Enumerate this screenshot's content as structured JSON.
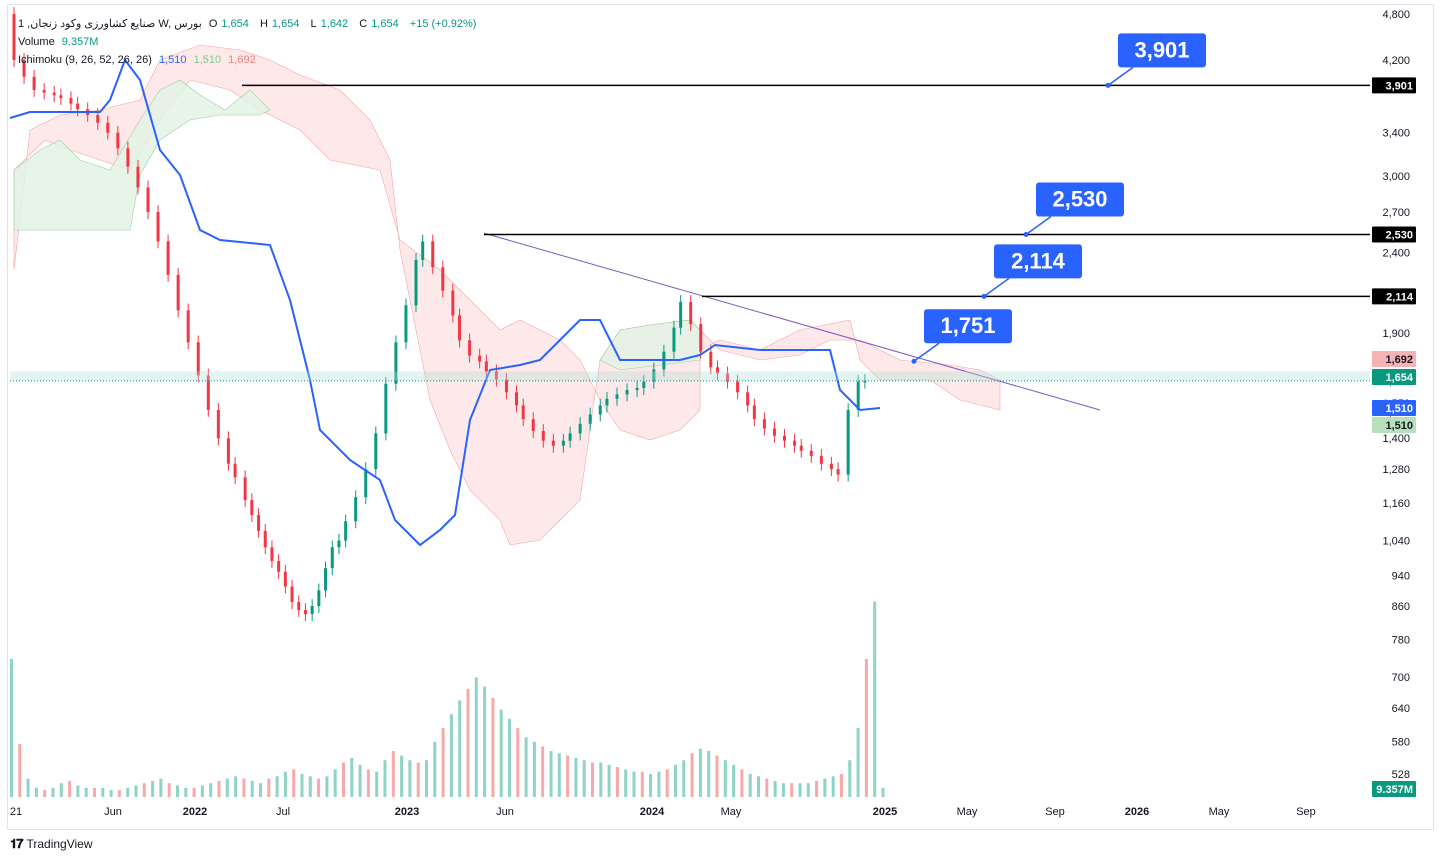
{
  "header": {
    "symbol_line": "1 ,صنایع کشاورزی وکود زنجان W, بورس",
    "ohlc": {
      "o_label": "O",
      "o": "1,654",
      "h_label": "H",
      "h": "1,654",
      "l_label": "L",
      "l": "1,642",
      "c_label": "C",
      "c": "1,654",
      "change": "+15 (+0.92%)"
    },
    "volume_label": "Volume",
    "volume_value": "9.357M",
    "ichimoku_label": "Ichimoku (9, 26, 52, 26, 26)",
    "ichimoku_values": [
      "1,510",
      "1,510",
      "1,692"
    ]
  },
  "footer": {
    "brand": "TradingView"
  },
  "colors": {
    "up": "#089981",
    "down": "#f23645",
    "kijun": "#2962ff",
    "cloud_red": "#fce0df",
    "cloud_green": "#e1f3e4",
    "level_line": "#000000",
    "callout": "#2962ff",
    "trendline": "#7e57c2"
  },
  "chart_data": {
    "type": "candlestick",
    "y_axis": {
      "scale": "log",
      "ticks": [
        4800,
        4200,
        3900,
        3400,
        3000,
        2700,
        2400,
        2114,
        1900,
        1692,
        1654,
        1550,
        1510,
        1400,
        1280,
        1160,
        1040,
        940,
        860,
        780,
        700,
        640,
        580,
        528
      ]
    },
    "x_axis": {
      "ticks": [
        "21",
        "Jun",
        "2022",
        "Jul",
        "2023",
        "Jun",
        "2024",
        "May",
        "2025",
        "May",
        "Sep",
        "2026",
        "May",
        "Sep"
      ]
    },
    "price_labels": [
      {
        "text": "3,901",
        "style": "black"
      },
      {
        "text": "2,530",
        "style": "black"
      },
      {
        "text": "2,114",
        "style": "black"
      },
      {
        "text": "1,692",
        "style": "pink"
      },
      {
        "text": "1,654",
        "style": "green"
      },
      {
        "text": "1,510",
        "style": "blue"
      },
      {
        "text": "1,510",
        "style": "lightgreen"
      },
      {
        "text": "9.357M",
        "style": "green"
      }
    ],
    "levels": [
      {
        "label": "3,901",
        "value": 3901
      },
      {
        "label": "2,530",
        "value": 2530
      },
      {
        "label": "2,114",
        "value": 2114
      },
      {
        "label": "1,751",
        "value": 1751
      }
    ],
    "last_close": 1654,
    "candles_approx": [
      [
        0,
        4200,
        4800
      ],
      [
        3,
        4000,
        4200
      ],
      [
        6,
        3850,
        4000
      ],
      [
        9,
        3820,
        3850
      ],
      [
        12,
        3790,
        3820
      ],
      [
        14,
        3760,
        3790
      ],
      [
        17,
        3700,
        3760
      ],
      [
        19,
        3640,
        3700
      ],
      [
        22,
        3580,
        3640
      ],
      [
        25,
        3500,
        3580
      ],
      [
        28,
        3400,
        3500
      ],
      [
        31,
        3250,
        3400
      ],
      [
        34,
        3080,
        3250
      ],
      [
        37,
        2900,
        3080
      ],
      [
        40,
        2700,
        2900
      ],
      [
        43,
        2480,
        2700
      ],
      [
        46,
        2250,
        2480
      ],
      [
        49,
        2030,
        2250
      ],
      [
        52,
        1850,
        2030
      ],
      [
        55,
        1680,
        1850
      ],
      [
        58,
        1520,
        1680
      ],
      [
        61,
        1400,
        1520
      ],
      [
        64,
        1300,
        1400
      ],
      [
        66,
        1250,
        1300
      ],
      [
        69,
        1170,
        1250
      ],
      [
        71,
        1120,
        1170
      ],
      [
        73,
        1070,
        1120
      ],
      [
        75,
        1020,
        1070
      ],
      [
        77,
        980,
        1020
      ],
      [
        79,
        950,
        980
      ],
      [
        81,
        910,
        950
      ],
      [
        83,
        870,
        910
      ],
      [
        85,
        850,
        870
      ],
      [
        87,
        840,
        850
      ],
      [
        89,
        860,
        840
      ],
      [
        91,
        900,
        860
      ],
      [
        93,
        960,
        900
      ],
      [
        95,
        1020,
        960
      ],
      [
        97,
        1040,
        1020
      ],
      [
        99,
        1100,
        1040
      ],
      [
        102,
        1180,
        1100
      ],
      [
        105,
        1280,
        1180
      ],
      [
        108,
        1420,
        1280
      ],
      [
        111,
        1640,
        1420
      ],
      [
        114,
        1850,
        1640
      ],
      [
        117,
        2060,
        1850
      ],
      [
        120,
        2350,
        2060
      ],
      [
        122,
        2480,
        2350
      ],
      [
        125,
        2300,
        2480
      ],
      [
        128,
        2150,
        2300
      ],
      [
        131,
        2000,
        2150
      ],
      [
        133,
        1860,
        2000
      ],
      [
        136,
        1780,
        1860
      ],
      [
        139,
        1750,
        1780
      ],
      [
        141,
        1700,
        1750
      ],
      [
        144,
        1660,
        1700
      ],
      [
        147,
        1600,
        1660
      ],
      [
        150,
        1540,
        1600
      ],
      [
        152,
        1480,
        1540
      ],
      [
        155,
        1430,
        1480
      ],
      [
        158,
        1390,
        1430
      ],
      [
        161,
        1370,
        1390
      ],
      [
        164,
        1390,
        1370
      ],
      [
        166,
        1420,
        1390
      ],
      [
        169,
        1460,
        1420
      ],
      [
        172,
        1500,
        1460
      ],
      [
        175,
        1540,
        1500
      ],
      [
        177,
        1570,
        1540
      ],
      [
        180,
        1590,
        1570
      ],
      [
        183,
        1610,
        1590
      ],
      [
        186,
        1620,
        1610
      ],
      [
        188,
        1650,
        1620
      ],
      [
        191,
        1710,
        1650
      ],
      [
        194,
        1800,
        1710
      ],
      [
        197,
        1930,
        1800
      ],
      [
        199,
        2080,
        1930
      ],
      [
        202,
        1950,
        2080
      ],
      [
        205,
        1800,
        1950
      ],
      [
        208,
        1720,
        1800
      ],
      [
        210,
        1690,
        1720
      ],
      [
        213,
        1650,
        1690
      ],
      [
        216,
        1600,
        1650
      ],
      [
        219,
        1540,
        1600
      ],
      [
        221,
        1480,
        1540
      ],
      [
        224,
        1440,
        1480
      ],
      [
        227,
        1410,
        1440
      ],
      [
        230,
        1390,
        1410
      ],
      [
        233,
        1370,
        1390
      ],
      [
        235,
        1350,
        1370
      ],
      [
        238,
        1330,
        1350
      ],
      [
        241,
        1300,
        1330
      ],
      [
        244,
        1280,
        1300
      ],
      [
        246,
        1260,
        1280
      ],
      [
        249,
        1520,
        1260
      ],
      [
        252,
        1650,
        1520
      ],
      [
        254,
        1654,
        1650
      ]
    ],
    "volume_approx": [
      600,
      230,
      80,
      40,
      30,
      40,
      60,
      70,
      50,
      40,
      40,
      40,
      30,
      30,
      40,
      50,
      60,
      70,
      80,
      60,
      50,
      40,
      40,
      50,
      60,
      70,
      80,
      90,
      80,
      70,
      60,
      80,
      90,
      110,
      120,
      100,
      90,
      80,
      90,
      120,
      150,
      170,
      140,
      120,
      110,
      160,
      200,
      180,
      160,
      150,
      160,
      240,
      300,
      360,
      420,
      470,
      520,
      480,
      430,
      380,
      340,
      300,
      260,
      240,
      220,
      200,
      190,
      180,
      170,
      160,
      150,
      150,
      140,
      130,
      120,
      110,
      110,
      100,
      110,
      120,
      140,
      160,
      190,
      210,
      200,
      180,
      160,
      140,
      120,
      100,
      90,
      80,
      70,
      60,
      60,
      60,
      60,
      70,
      80,
      90,
      100,
      160,
      300,
      600,
      850,
      40
    ]
  }
}
